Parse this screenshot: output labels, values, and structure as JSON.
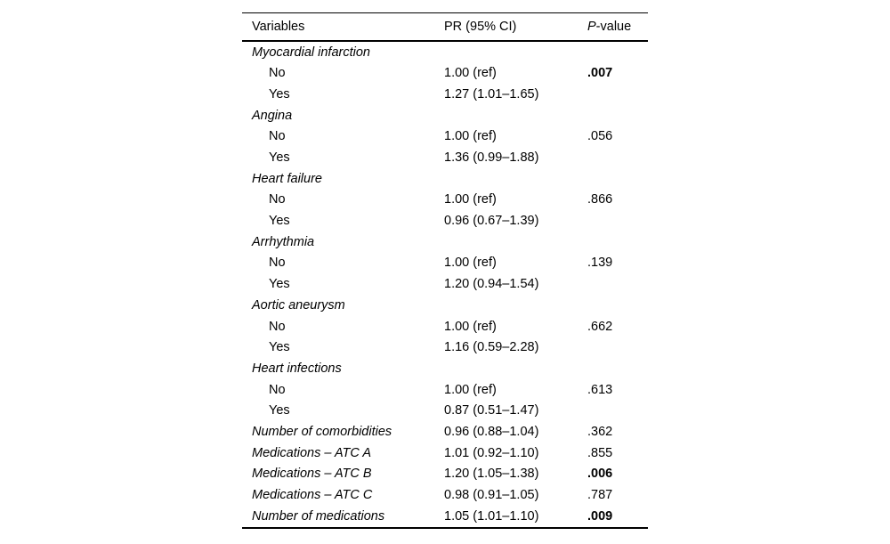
{
  "table": {
    "header": {
      "variables": "Variables",
      "pr": "PR (95% CI)",
      "pvalue_prefix": "P",
      "pvalue_suffix": "-value"
    },
    "rows": [
      {
        "label": "Myocardial infarction",
        "indent": false,
        "italic": true,
        "pr": "",
        "p": "",
        "bold_p": false
      },
      {
        "label": "No",
        "indent": true,
        "italic": false,
        "pr": "1.00 (ref)",
        "p": ".007",
        "bold_p": true
      },
      {
        "label": "Yes",
        "indent": true,
        "italic": false,
        "pr": "1.27 (1.01–1.65)",
        "p": "",
        "bold_p": false
      },
      {
        "label": "Angina",
        "indent": false,
        "italic": true,
        "pr": "",
        "p": "",
        "bold_p": false
      },
      {
        "label": "No",
        "indent": true,
        "italic": false,
        "pr": "1.00 (ref)",
        "p": ".056",
        "bold_p": false
      },
      {
        "label": "Yes",
        "indent": true,
        "italic": false,
        "pr": "1.36 (0.99–1.88)",
        "p": "",
        "bold_p": false
      },
      {
        "label": "Heart failure",
        "indent": false,
        "italic": true,
        "pr": "",
        "p": "",
        "bold_p": false
      },
      {
        "label": "No",
        "indent": true,
        "italic": false,
        "pr": "1.00 (ref)",
        "p": ".866",
        "bold_p": false
      },
      {
        "label": "Yes",
        "indent": true,
        "italic": false,
        "pr": "0.96 (0.67–1.39)",
        "p": "",
        "bold_p": false
      },
      {
        "label": "Arrhythmia",
        "indent": false,
        "italic": true,
        "pr": "",
        "p": "",
        "bold_p": false
      },
      {
        "label": "No",
        "indent": true,
        "italic": false,
        "pr": "1.00 (ref)",
        "p": ".139",
        "bold_p": false
      },
      {
        "label": "Yes",
        "indent": true,
        "italic": false,
        "pr": "1.20 (0.94–1.54)",
        "p": "",
        "bold_p": false
      },
      {
        "label": "Aortic aneurysm",
        "indent": false,
        "italic": true,
        "pr": "",
        "p": "",
        "bold_p": false
      },
      {
        "label": "No",
        "indent": true,
        "italic": false,
        "pr": "1.00 (ref)",
        "p": ".662",
        "bold_p": false
      },
      {
        "label": "Yes",
        "indent": true,
        "italic": false,
        "pr": "1.16 (0.59–2.28)",
        "p": "",
        "bold_p": false
      },
      {
        "label": "Heart infections",
        "indent": false,
        "italic": true,
        "pr": "",
        "p": "",
        "bold_p": false
      },
      {
        "label": "No",
        "indent": true,
        "italic": false,
        "pr": "1.00 (ref)",
        "p": ".613",
        "bold_p": false
      },
      {
        "label": "Yes",
        "indent": true,
        "italic": false,
        "pr": "0.87 (0.51–1.47)",
        "p": "",
        "bold_p": false
      },
      {
        "label": "Number of comorbidities",
        "indent": false,
        "italic": true,
        "pr": "0.96 (0.88–1.04)",
        "p": ".362",
        "bold_p": false
      },
      {
        "label": "Medications – ATC A",
        "indent": false,
        "italic": true,
        "pr": "1.01 (0.92–1.10)",
        "p": ".855",
        "bold_p": false
      },
      {
        "label": "Medications – ATC B",
        "indent": false,
        "italic": true,
        "pr": "1.20 (1.05–1.38)",
        "p": ".006",
        "bold_p": true
      },
      {
        "label": "Medications – ATC C",
        "indent": false,
        "italic": true,
        "pr": "0.98 (0.91–1.05)",
        "p": ".787",
        "bold_p": false
      },
      {
        "label": "Number of medications",
        "indent": false,
        "italic": true,
        "pr": "1.05 (1.01–1.10)",
        "p": ".009",
        "bold_p": true
      }
    ]
  },
  "colors": {
    "background": "#ffffff",
    "text": "#000000",
    "rule": "#000000"
  }
}
